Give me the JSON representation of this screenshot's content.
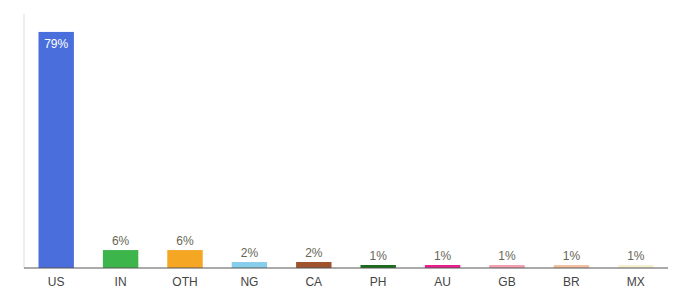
{
  "chart_data": {
    "type": "bar",
    "categories": [
      "US",
      "IN",
      "OTH",
      "NG",
      "CA",
      "PH",
      "AU",
      "GB",
      "BR",
      "MX"
    ],
    "values": [
      79,
      6,
      6,
      2,
      2,
      1,
      1,
      1,
      1,
      1
    ],
    "value_labels": [
      "79%",
      "6%",
      "6%",
      "2%",
      "2%",
      "1%",
      "1%",
      "1%",
      "1%",
      "1%"
    ],
    "colors": [
      "#4a6fdc",
      "#3cb54a",
      "#f5a623",
      "#87ceeb",
      "#a0522d",
      "#1a6b1a",
      "#e91e8c",
      "#f4a0b0",
      "#f4c0a0",
      "#f5f0d0"
    ],
    "ylim": [
      0,
      85
    ],
    "data_labels": true,
    "tick_labels": "x"
  }
}
